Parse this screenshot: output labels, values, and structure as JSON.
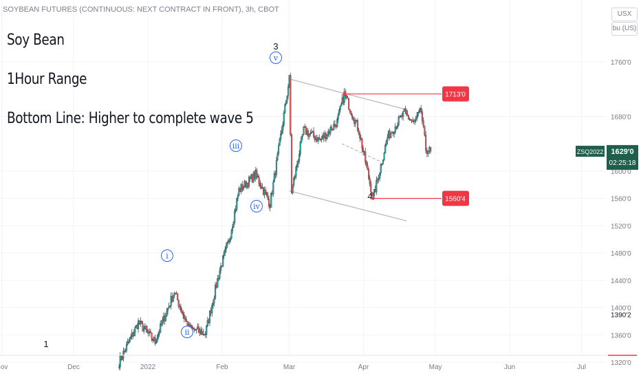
{
  "header": {
    "title": "SOYBEAN FUTURES (CONTINUOUS: NEXT CONTRACT IN FRONT), 3h, CBOT"
  },
  "currency": {
    "unit": "USX",
    "unit_sub": "bu (US)"
  },
  "notes": [
    "Soy Bean",
    "1Hour Range",
    "Bottom Line: Higher to complete wave 5"
  ],
  "colors": {
    "up": "#26a69a",
    "down": "#ef5350",
    "candle": "#2a2e39",
    "channel": "#b2b5be",
    "callout": "#f23645",
    "wave": "#2962ff",
    "last_bg": "#1e5e4b"
  },
  "chart_data": {
    "type": "candlestick",
    "symbol": "ZSQ2022",
    "x_ticks": [
      "Nov",
      "Dec",
      "2022",
      "Feb",
      "Mar",
      "Apr",
      "May",
      "Jun",
      "Jul"
    ],
    "y_ticks": [
      "1760'0",
      "1680'0",
      "1600'0",
      "1560'0",
      "1520'0",
      "1480'0",
      "1440'0",
      "1400'0",
      "1360'0",
      "1320'0"
    ],
    "price_labels": {
      "high": "1713'0",
      "low": "1560'4",
      "last": "1629'0",
      "countdown": "02:25:18",
      "marker": "1390'2"
    },
    "wave_labels": [
      "1",
      "i",
      "ii",
      "iii",
      "iv",
      "v",
      "3",
      "4"
    ],
    "anchors": [
      {
        "date": "2021-12-20",
        "price": 1320
      },
      {
        "date": "2021-12-28",
        "price": 1378
      },
      {
        "date": "2022-01-04",
        "price": 1350
      },
      {
        "date": "2022-01-12",
        "price": 1423
      },
      {
        "date": "2022-01-18",
        "price": 1370
      },
      {
        "date": "2022-01-25",
        "price": 1362
      },
      {
        "date": "2022-01-31",
        "price": 1455
      },
      {
        "date": "2022-02-04",
        "price": 1500
      },
      {
        "date": "2022-02-08",
        "price": 1572
      },
      {
        "date": "2022-02-15",
        "price": 1595
      },
      {
        "date": "2022-02-21",
        "price": 1552
      },
      {
        "date": "2022-02-25",
        "price": 1640
      },
      {
        "date": "2022-03-01",
        "price": 1735
      },
      {
        "date": "2022-03-02",
        "price": 1570
      },
      {
        "date": "2022-03-07",
        "price": 1660
      },
      {
        "date": "2022-03-14",
        "price": 1645
      },
      {
        "date": "2022-03-21",
        "price": 1672
      },
      {
        "date": "2022-03-24",
        "price": 1713
      },
      {
        "date": "2022-03-30",
        "price": 1660
      },
      {
        "date": "2022-04-05",
        "price": 1560
      },
      {
        "date": "2022-04-11",
        "price": 1650
      },
      {
        "date": "2022-04-18",
        "price": 1685
      },
      {
        "date": "2022-04-22",
        "price": 1670
      },
      {
        "date": "2022-04-25",
        "price": 1688
      },
      {
        "date": "2022-04-27",
        "price": 1632
      },
      {
        "date": "2022-04-29",
        "price": 1629
      }
    ]
  }
}
